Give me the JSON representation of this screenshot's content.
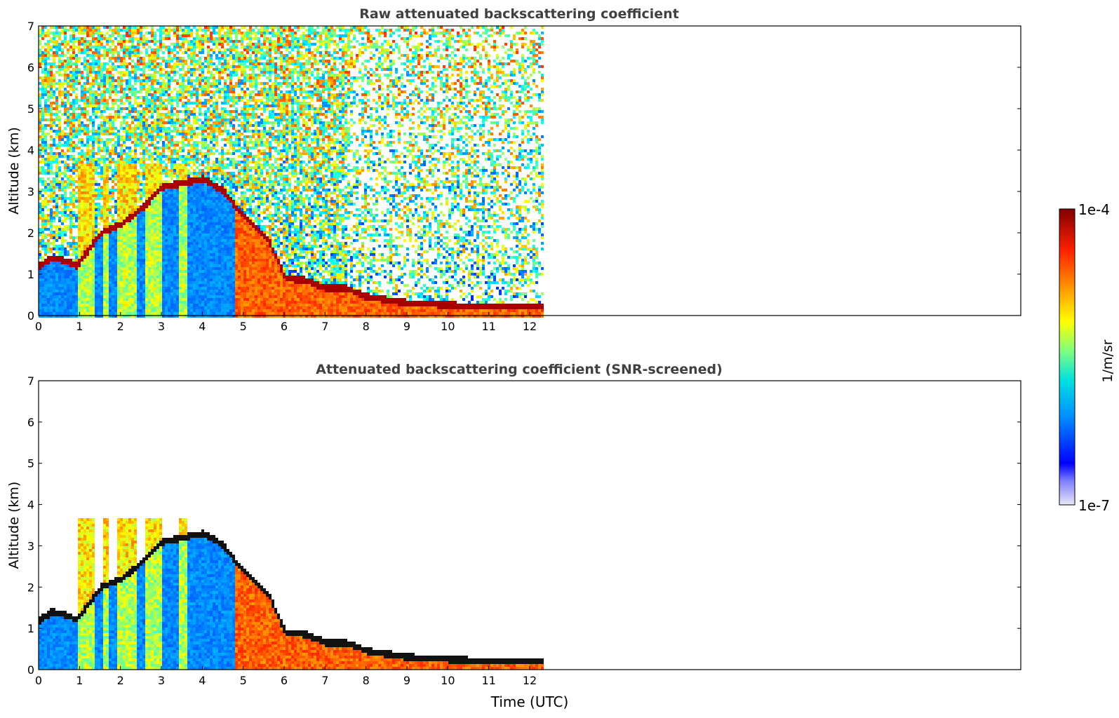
{
  "chart_data": [
    {
      "type": "heatmap",
      "title": "Raw attenuated backscattering coefficient",
      "ylabel": "Altitude (km)",
      "xlabel": "",
      "xlim": [
        0,
        24
      ],
      "ylim": [
        0,
        7
      ],
      "x_ticks": [
        0,
        1,
        2,
        3,
        4,
        5,
        6,
        7,
        8,
        9,
        10,
        11,
        12
      ],
      "y_ticks": [
        0,
        1,
        2,
        3,
        4,
        5,
        6,
        7
      ],
      "data_extent_hours": 12.3,
      "description_features": {
        "aerosol_layer_top_km": [
          [
            0.0,
            1.2
          ],
          [
            0.3,
            1.4
          ],
          [
            0.7,
            1.3
          ],
          [
            0.9,
            1.2
          ],
          [
            1.5,
            2.0
          ],
          [
            2.0,
            2.2
          ],
          [
            2.5,
            2.6
          ],
          [
            3.0,
            3.1
          ],
          [
            3.5,
            3.2
          ],
          [
            4.0,
            3.3
          ],
          [
            4.5,
            3.0
          ],
          [
            4.8,
            2.6
          ],
          [
            5.2,
            2.2
          ],
          [
            5.6,
            1.8
          ],
          [
            6.0,
            0.9
          ],
          [
            6.5,
            0.85
          ],
          [
            7.0,
            0.65
          ],
          [
            7.5,
            0.65
          ],
          [
            8.0,
            0.45
          ],
          [
            9.0,
            0.3
          ],
          [
            10.0,
            0.25
          ],
          [
            11.0,
            0.2
          ],
          [
            12.3,
            0.2
          ]
        ]
      }
    },
    {
      "type": "heatmap",
      "title": "Attenuated backscattering coefficient (SNR-screened)",
      "ylabel": "Altitude (km)",
      "xlabel": "Time (UTC)",
      "xlim": [
        0,
        24
      ],
      "ylim": [
        0,
        7
      ],
      "x_ticks": [
        0,
        1,
        2,
        3,
        4,
        5,
        6,
        7,
        8,
        9,
        10,
        11,
        12
      ],
      "y_ticks": [
        0,
        1,
        2,
        3,
        4,
        5,
        6,
        7
      ],
      "data_extent_hours": 12.3
    }
  ],
  "colorbar": {
    "label": "1/m/sr",
    "max_label": "1e-4",
    "min_label": "1e-7",
    "colormap": "jet",
    "stops": [
      "#e8e8f8",
      "#0000ff",
      "#00a0ff",
      "#00e0e0",
      "#80ff80",
      "#ffff00",
      "#ff8000",
      "#ff0000",
      "#800000"
    ]
  },
  "colors": {
    "title": "#404040",
    "axis": "#000000",
    "background": "#ffffff"
  }
}
